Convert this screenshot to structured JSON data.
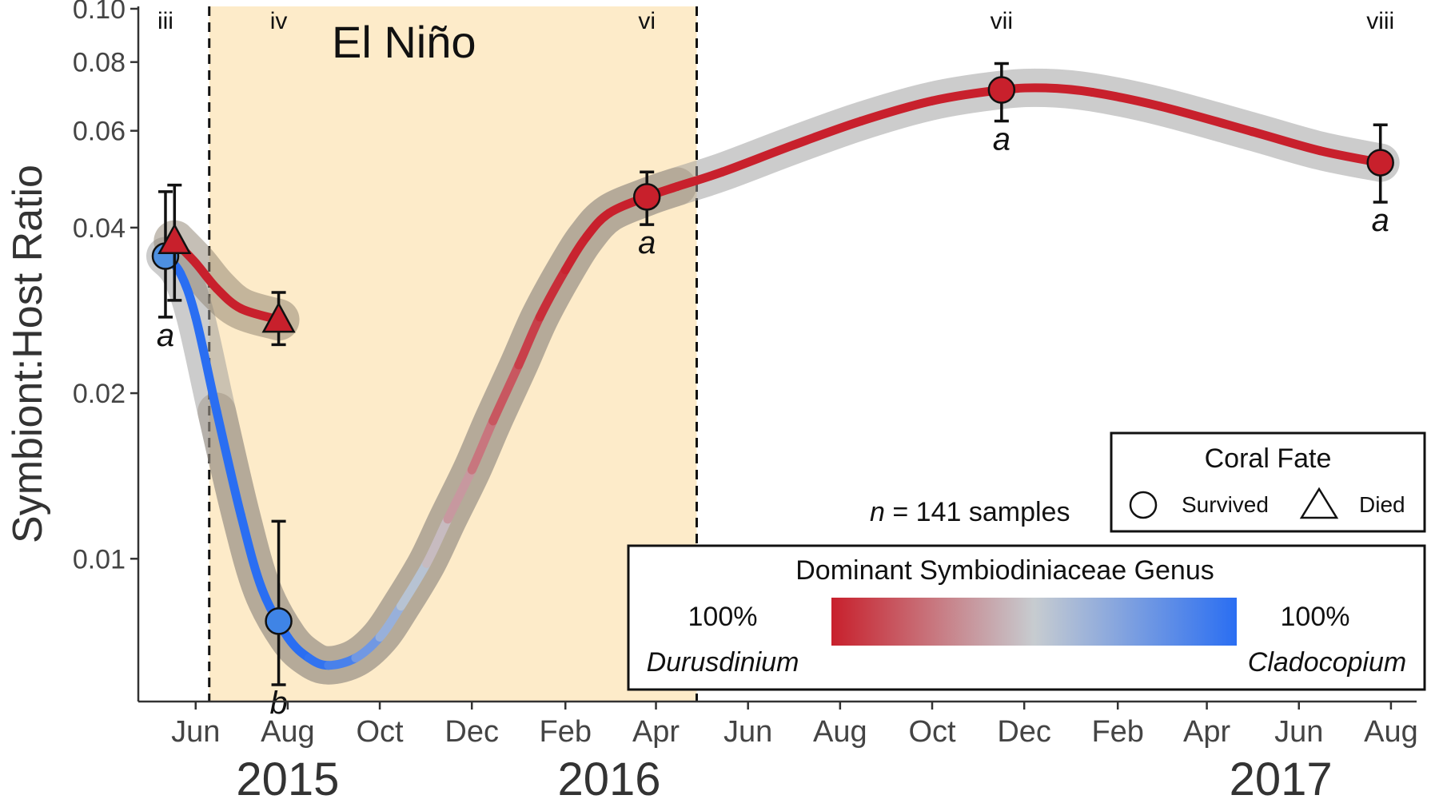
{
  "chart_data": {
    "type": "line",
    "ylabel": "Symbiont:Host Ratio",
    "xlabel": "",
    "y_scale": "log",
    "ylim": [
      0.0055,
      0.101
    ],
    "xlim": [
      "2015-04-24",
      "2017-08-18"
    ],
    "y_ticks": [
      {
        "value": 0.01,
        "label": "0.01"
      },
      {
        "value": 0.02,
        "label": "0.02"
      },
      {
        "value": 0.04,
        "label": "0.04"
      },
      {
        "value": 0.06,
        "label": "0.06"
      },
      {
        "value": 0.08,
        "label": "0.08"
      },
      {
        "value": 0.1,
        "label": "0.10"
      }
    ],
    "x_ticks": [
      {
        "date": "2015-06-01",
        "label": "Jun"
      },
      {
        "date": "2015-08-01",
        "label": "Aug"
      },
      {
        "date": "2015-10-01",
        "label": "Oct"
      },
      {
        "date": "2015-12-01",
        "label": "Dec"
      },
      {
        "date": "2016-02-01",
        "label": "Feb"
      },
      {
        "date": "2016-04-01",
        "label": "Apr"
      },
      {
        "date": "2016-06-01",
        "label": "Jun"
      },
      {
        "date": "2016-08-01",
        "label": "Aug"
      },
      {
        "date": "2016-10-01",
        "label": "Oct"
      },
      {
        "date": "2016-12-01",
        "label": "Dec"
      },
      {
        "date": "2017-02-01",
        "label": "Feb"
      },
      {
        "date": "2017-04-01",
        "label": "Apr"
      },
      {
        "date": "2017-06-01",
        "label": "Jun"
      },
      {
        "date": "2017-08-01",
        "label": "Aug"
      }
    ],
    "year_labels": [
      {
        "date": "2015-08-01",
        "label": "2015"
      },
      {
        "date": "2016-03-01",
        "label": "2016"
      },
      {
        "date": "2017-05-20",
        "label": "2017"
      }
    ],
    "shaded_region": {
      "label": "El Niño",
      "start": "2015-06-10",
      "end": "2016-04-28",
      "color": "#fdebc9"
    },
    "phases": [
      {
        "date": "2015-05-12",
        "label": "iii"
      },
      {
        "date": "2015-07-26",
        "label": "iv"
      },
      {
        "date": "2016-03-26",
        "label": "vi"
      },
      {
        "date": "2016-11-16",
        "label": "vii"
      },
      {
        "date": "2017-07-25",
        "label": "viii"
      }
    ],
    "series": [
      {
        "fate": "Survived",
        "marker": "circle",
        "curve": [
          [
            "2015-05-12",
            0.0355,
            1.0
          ],
          [
            "2015-05-22",
            0.033,
            1.0
          ],
          [
            "2015-06-01",
            0.0275,
            1.0
          ],
          [
            "2015-06-15",
            0.0185,
            1.0
          ],
          [
            "2015-07-01",
            0.012,
            1.0
          ],
          [
            "2015-07-15",
            0.0088,
            1.0
          ],
          [
            "2015-08-01",
            0.0072,
            1.0
          ],
          [
            "2015-08-15",
            0.0066,
            1.0
          ],
          [
            "2015-08-28",
            0.0064,
            0.95
          ],
          [
            "2015-09-15",
            0.0066,
            0.85
          ],
          [
            "2015-10-01",
            0.0072,
            0.7
          ],
          [
            "2015-10-15",
            0.0082,
            0.6
          ],
          [
            "2015-11-01",
            0.0098,
            0.5
          ],
          [
            "2015-11-15",
            0.0118,
            0.4
          ],
          [
            "2015-12-01",
            0.0145,
            0.3
          ],
          [
            "2015-12-15",
            0.0178,
            0.2
          ],
          [
            "2016-01-01",
            0.0225,
            0.12
          ],
          [
            "2016-01-15",
            0.0275,
            0.06
          ],
          [
            "2016-02-01",
            0.0335,
            0.02
          ],
          [
            "2016-02-15",
            0.0385,
            0.0
          ],
          [
            "2016-03-01",
            0.0425,
            0.0
          ],
          [
            "2016-03-26",
            0.0455,
            0.0
          ],
          [
            "2016-04-15",
            0.0475,
            0.0
          ],
          [
            "2016-05-15",
            0.0505,
            0.0
          ],
          [
            "2016-07-01",
            0.0565,
            0.0
          ],
          [
            "2016-08-15",
            0.0625,
            0.0
          ],
          [
            "2016-10-01",
            0.068,
            0.0
          ],
          [
            "2016-11-16",
            0.0712,
            0.0
          ],
          [
            "2016-12-15",
            0.0718,
            0.0
          ],
          [
            "2017-01-15",
            0.0705,
            0.0
          ],
          [
            "2017-03-01",
            0.0665,
            0.0
          ],
          [
            "2017-05-01",
            0.0598,
            0.0
          ],
          [
            "2017-06-15",
            0.0552,
            0.0
          ],
          [
            "2017-07-25",
            0.0525,
            0.0
          ]
        ],
        "points": [
          {
            "date": "2015-05-12",
            "y": 0.0355,
            "ylow": 0.0275,
            "yhigh": 0.0465,
            "fill": "#4d8fe0",
            "letter": "a"
          },
          {
            "date": "2015-07-26",
            "y": 0.0077,
            "ylow": 0.0059,
            "yhigh": 0.0117,
            "fill": "#3f84e6",
            "letter": "b"
          },
          {
            "date": "2016-03-26",
            "y": 0.0455,
            "ylow": 0.0405,
            "yhigh": 0.0505,
            "fill": "#c8202c",
            "letter": "a"
          },
          {
            "date": "2016-11-16",
            "y": 0.0712,
            "ylow": 0.0625,
            "yhigh": 0.0795,
            "fill": "#c8202c",
            "letter": "a"
          },
          {
            "date": "2017-07-25",
            "y": 0.0525,
            "ylow": 0.0445,
            "yhigh": 0.0615,
            "fill": "#c8202c",
            "letter": "a"
          }
        ]
      },
      {
        "fate": "Died",
        "marker": "triangle",
        "curve": [
          [
            "2015-05-18",
            0.0378,
            0.0
          ],
          [
            "2015-06-01",
            0.0345,
            0.0
          ],
          [
            "2015-06-15",
            0.031,
            0.0
          ],
          [
            "2015-07-01",
            0.0285,
            0.0
          ],
          [
            "2015-07-26",
            0.0272,
            0.0
          ]
        ],
        "points": [
          {
            "date": "2015-05-18",
            "y": 0.0378,
            "ylow": 0.0295,
            "yhigh": 0.0478,
            "fill": "#c8202c",
            "letter": ""
          },
          {
            "date": "2015-07-26",
            "y": 0.0272,
            "ylow": 0.0245,
            "yhigh": 0.0305,
            "fill": "#c8202c",
            "letter": ""
          }
        ]
      }
    ]
  },
  "sample_note": {
    "n_label": "n",
    "rest": " = 141 samples"
  },
  "fate_legend": {
    "title": "Coral Fate",
    "survived": "Survived",
    "died": "Died"
  },
  "genus_legend": {
    "title": "Dominant Symbiodiniaceae Genus",
    "left_pct": "100%",
    "left_genus": "Durusdinium",
    "right_pct": "100%",
    "right_genus": "Cladocopium"
  },
  "colors": {
    "durusdinium": "#c8202c",
    "cladocopium": "#2a6ef2",
    "mid": "#c7ccd0",
    "band": "#8c7f6d",
    "band_gray": "#9a9a9a",
    "elnino": "#fdebc9"
  }
}
